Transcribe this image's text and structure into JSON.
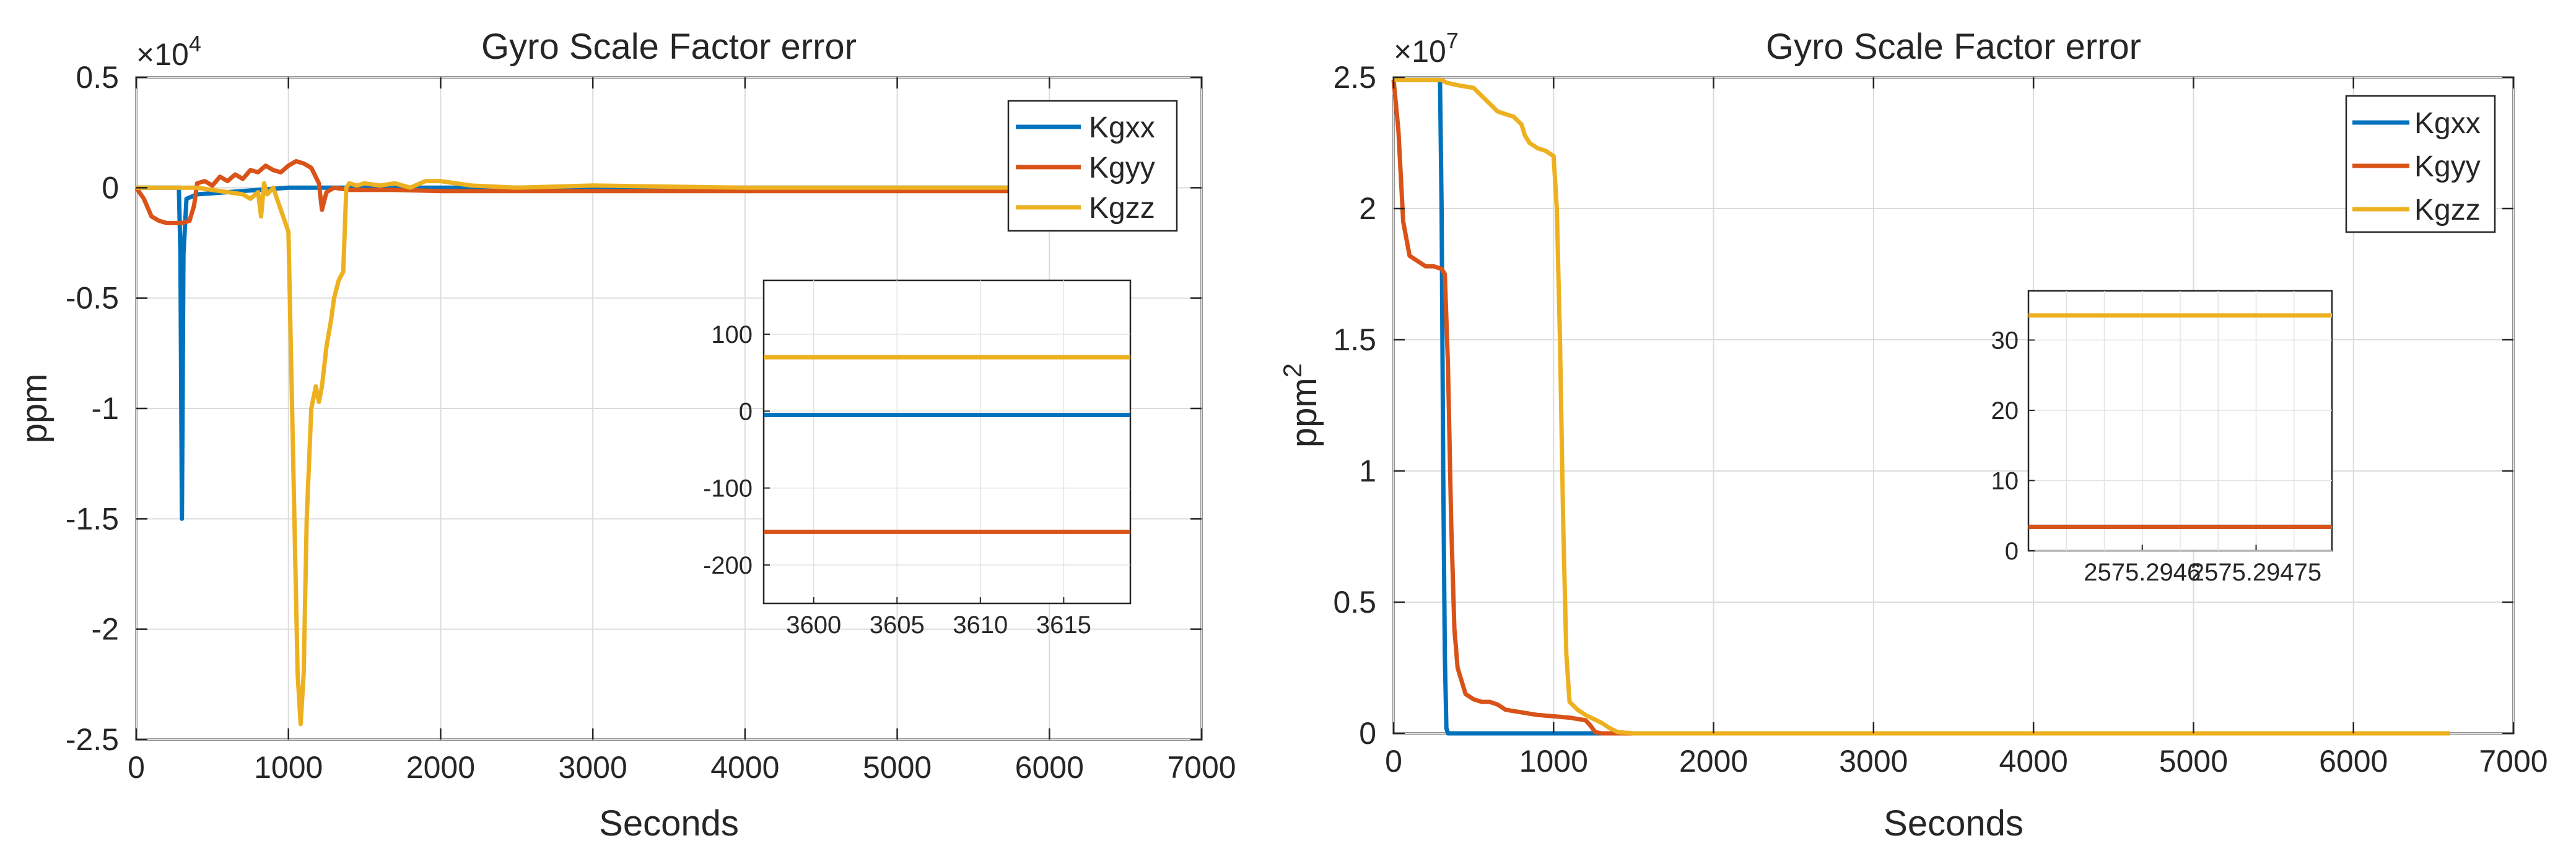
{
  "colors": {
    "kgxx": "#0072BD",
    "kgyy": "#D95319",
    "kgzz": "#EDB120"
  },
  "chart_data": [
    {
      "type": "line",
      "title": "Gyro Scale Factor error",
      "xlabel": "Seconds",
      "ylabel": "ppm",
      "exponent_base": "×10",
      "exponent_power": "4",
      "xlim": [
        0,
        7000
      ],
      "ylim": [
        -2.5,
        0.5
      ],
      "xticks": [
        0,
        1000,
        2000,
        3000,
        4000,
        5000,
        6000,
        7000
      ],
      "xtick_labels": [
        "0",
        "1000",
        "2000",
        "3000",
        "4000",
        "5000",
        "6000",
        "7000"
      ],
      "yticks": [
        0.5,
        0,
        -0.5,
        -1,
        -1.5,
        -2,
        -2.5
      ],
      "ytick_labels": [
        "0.5",
        "0",
        "-0.5",
        "-1",
        "-1.5",
        "-2",
        "-2.5"
      ],
      "legend": [
        "Kgxx",
        "Kgyy",
        "Kgzz"
      ],
      "legend_position": "top-right",
      "grid": true,
      "series": [
        {
          "name": "Kgxx",
          "x": [
            0,
            280,
            290,
            300,
            310,
            330,
            400,
            600,
            800,
            1000,
            1500,
            2000,
            3000,
            4000,
            5000,
            6000,
            6500
          ],
          "y": [
            0,
            0,
            -0.3,
            -1.5,
            -0.3,
            -0.05,
            -0.03,
            -0.02,
            -0.01,
            0,
            0,
            0,
            0,
            0,
            0,
            0,
            0
          ]
        },
        {
          "name": "Kgyy",
          "x": [
            0,
            50,
            100,
            150,
            200,
            250,
            300,
            350,
            380,
            400,
            450,
            500,
            550,
            600,
            650,
            700,
            750,
            800,
            850,
            900,
            950,
            1000,
            1050,
            1100,
            1150,
            1200,
            1220,
            1250,
            1300,
            1400,
            1500,
            1700,
            2000,
            2500,
            3000,
            4000,
            5000,
            6000,
            6500
          ],
          "y": [
            0,
            -0.05,
            -0.13,
            -0.15,
            -0.16,
            -0.16,
            -0.16,
            -0.15,
            -0.08,
            0.02,
            0.03,
            0.01,
            0.05,
            0.03,
            0.06,
            0.04,
            0.08,
            0.07,
            0.1,
            0.08,
            0.07,
            0.1,
            0.12,
            0.11,
            0.09,
            0.02,
            -0.1,
            -0.02,
            0.0,
            -0.01,
            -0.01,
            -0.01,
            -0.015,
            -0.015,
            -0.015,
            -0.015,
            -0.015,
            -0.015,
            -0.015
          ]
        },
        {
          "name": "Kgzz",
          "x": [
            0,
            200,
            400,
            600,
            700,
            750,
            800,
            820,
            840,
            860,
            900,
            950,
            1000,
            1030,
            1060,
            1080,
            1100,
            1120,
            1150,
            1180,
            1200,
            1220,
            1250,
            1280,
            1300,
            1330,
            1360,
            1380,
            1400,
            1450,
            1500,
            1600,
            1700,
            1800,
            1900,
            2000,
            2200,
            2500,
            3000,
            4000,
            5000,
            6000,
            6500
          ],
          "y": [
            0,
            0,
            0,
            -0.02,
            -0.03,
            -0.05,
            -0.02,
            -0.13,
            0.02,
            -0.03,
            0.0,
            -0.1,
            -0.2,
            -1.2,
            -2.2,
            -2.43,
            -2.2,
            -1.5,
            -1.0,
            -0.9,
            -0.97,
            -0.9,
            -0.72,
            -0.6,
            -0.5,
            -0.42,
            -0.38,
            0.0,
            0.02,
            0.01,
            0.02,
            0.01,
            0.02,
            0.0,
            0.03,
            0.03,
            0.01,
            0.0,
            0.01,
            0.0,
            0.0,
            0.0,
            0.0
          ]
        }
      ],
      "inset": {
        "xlim": [
          3597,
          3619
        ],
        "ylim": [
          -250,
          170
        ],
        "xticks": [
          3600,
          3605,
          3610,
          3615
        ],
        "xtick_labels": [
          "3600",
          "3605",
          "3610",
          "3615"
        ],
        "yticks": [
          100,
          0,
          -100,
          -200
        ],
        "ytick_labels": [
          "100",
          "0",
          "-100",
          "-200"
        ],
        "series": [
          {
            "name": "Kgxx",
            "value": -5
          },
          {
            "name": "Kgyy",
            "value": -157
          },
          {
            "name": "Kgzz",
            "value": 70
          }
        ]
      }
    },
    {
      "type": "line",
      "title": "Gyro Scale Factor error",
      "xlabel": "Seconds",
      "ylabel": "ppm",
      "ylabel_superscript": "2",
      "exponent_base": "×10",
      "exponent_power": "7",
      "xlim": [
        0,
        7000
      ],
      "ylim": [
        0,
        2.5
      ],
      "xticks": [
        0,
        1000,
        2000,
        3000,
        4000,
        5000,
        6000,
        7000
      ],
      "xtick_labels": [
        "0",
        "1000",
        "2000",
        "3000",
        "4000",
        "5000",
        "6000",
        "7000"
      ],
      "yticks": [
        2.5,
        2,
        1.5,
        1,
        0.5,
        0
      ],
      "ytick_labels": [
        "2.5",
        "2",
        "1.5",
        "1",
        "0.5",
        "0"
      ],
      "legend": [
        "Kgxx",
        "Kgyy",
        "Kgzz"
      ],
      "legend_position": "top-right",
      "grid": true,
      "series": [
        {
          "name": "Kgxx",
          "x": [
            0,
            250,
            290,
            300,
            310,
            320,
            330,
            340,
            400,
            1000,
            3000,
            6600
          ],
          "y": [
            2.49,
            2.49,
            2.49,
            2.0,
            1.0,
            0.3,
            0.02,
            0.0,
            0.0,
            0.0,
            0.0,
            0.0
          ]
        },
        {
          "name": "Kgyy",
          "x": [
            0,
            30,
            60,
            100,
            150,
            200,
            250,
            300,
            320,
            340,
            360,
            380,
            400,
            450,
            500,
            550,
            600,
            650,
            700,
            800,
            900,
            1000,
            1100,
            1200,
            1230,
            1260,
            1300,
            1400,
            3000,
            6600
          ],
          "y": [
            2.49,
            2.3,
            1.95,
            1.82,
            1.8,
            1.78,
            1.78,
            1.77,
            1.75,
            1.4,
            0.8,
            0.4,
            0.25,
            0.15,
            0.13,
            0.12,
            0.12,
            0.11,
            0.09,
            0.08,
            0.07,
            0.065,
            0.06,
            0.05,
            0.03,
            0.005,
            0.0,
            0.0,
            0.0,
            0.0
          ]
        },
        {
          "name": "Kgzz",
          "x": [
            0,
            300,
            330,
            400,
            500,
            550,
            600,
            650,
            700,
            750,
            800,
            820,
            850,
            900,
            950,
            1000,
            1020,
            1040,
            1060,
            1080,
            1100,
            1150,
            1200,
            1300,
            1350,
            1400,
            1500,
            2000,
            3000,
            6600
          ],
          "y": [
            2.49,
            2.49,
            2.48,
            2.47,
            2.46,
            2.43,
            2.4,
            2.37,
            2.36,
            2.35,
            2.32,
            2.28,
            2.25,
            2.23,
            2.22,
            2.2,
            2.0,
            1.5,
            0.8,
            0.3,
            0.12,
            0.09,
            0.07,
            0.04,
            0.02,
            0.005,
            0.0,
            0.0,
            0.0,
            0.0
          ]
        }
      ],
      "inset": {
        "xlim": [
          2575.29445,
          2575.29485
        ],
        "ylim": [
          0,
          37
        ],
        "xticks": [
          2575.2946,
          2575.29475
        ],
        "xtick_labels": [
          "2575.2946",
          "2575.29475"
        ],
        "extra_grid_x": [
          2575.2945,
          2575.29455,
          2575.29465,
          2575.2947,
          2575.2948
        ],
        "yticks": [
          30,
          20,
          10,
          0
        ],
        "ytick_labels": [
          "30",
          "20",
          "10",
          "0"
        ],
        "series": [
          {
            "name": "Kgxx",
            "value": 3.4
          },
          {
            "name": "Kgyy",
            "value": 3.4
          },
          {
            "name": "Kgzz",
            "value": 33.5
          }
        ]
      }
    }
  ]
}
